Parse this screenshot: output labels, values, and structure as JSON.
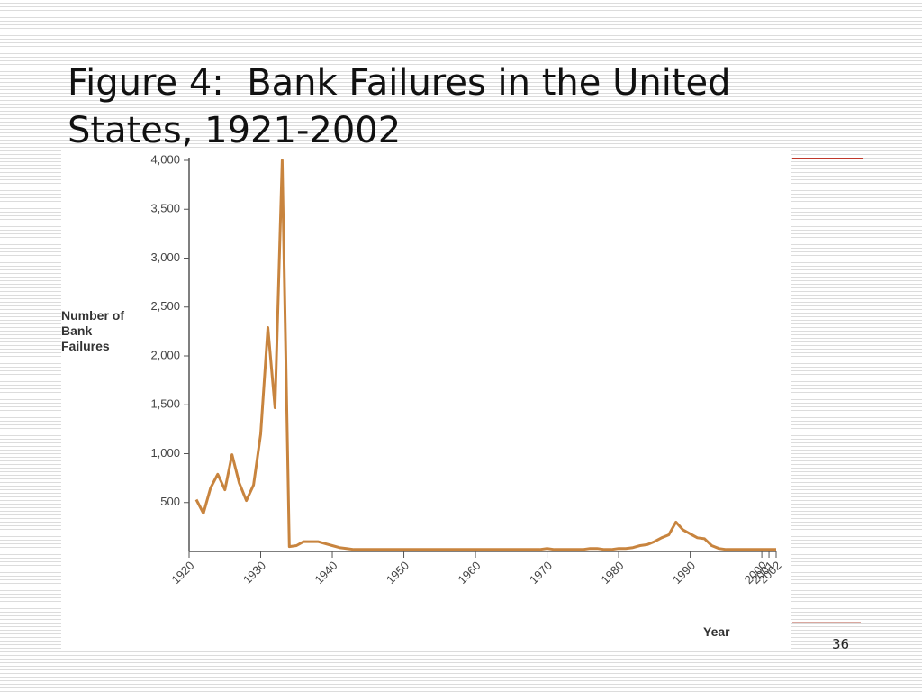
{
  "chart_data": {
    "type": "line",
    "title": "Figure 4:  Bank Failures in the United States, 1921-2002",
    "y_label": "Number of Bank Failures",
    "x_label": "Year",
    "page_number": "36",
    "color": "#c8843e",
    "x": [
      1921,
      1922,
      1923,
      1924,
      1925,
      1926,
      1927,
      1928,
      1929,
      1930,
      1931,
      1932,
      1933,
      1934,
      1935,
      1936,
      1937,
      1938,
      1939,
      1940,
      1941,
      1942,
      1943,
      1944,
      1945,
      1946,
      1947,
      1948,
      1949,
      1950,
      1951,
      1952,
      1953,
      1954,
      1955,
      1956,
      1957,
      1958,
      1959,
      1960,
      1961,
      1962,
      1963,
      1964,
      1965,
      1966,
      1967,
      1968,
      1969,
      1970,
      1971,
      1972,
      1973,
      1974,
      1975,
      1976,
      1977,
      1978,
      1979,
      1980,
      1981,
      1982,
      1983,
      1984,
      1985,
      1986,
      1987,
      1988,
      1989,
      1990,
      1991,
      1992,
      1993,
      1994,
      1995,
      1996,
      1997,
      1998,
      1999,
      2000,
      2001,
      2002
    ],
    "values": [
      530,
      390,
      650,
      790,
      630,
      990,
      700,
      520,
      680,
      1200,
      2290,
      1470,
      4000,
      50,
      60,
      100,
      100,
      100,
      80,
      60,
      40,
      30,
      20,
      20,
      20,
      20,
      20,
      20,
      20,
      20,
      20,
      20,
      20,
      20,
      20,
      20,
      20,
      20,
      20,
      20,
      20,
      20,
      20,
      20,
      20,
      20,
      20,
      20,
      20,
      30,
      20,
      20,
      20,
      20,
      20,
      30,
      30,
      20,
      20,
      30,
      30,
      40,
      60,
      70,
      100,
      140,
      170,
      300,
      220,
      180,
      140,
      130,
      60,
      30,
      20,
      20,
      20,
      20,
      20,
      20,
      20,
      20
    ],
    "xlim": [
      1920,
      2002
    ],
    "xticks": [
      1920,
      1930,
      1940,
      1950,
      1960,
      1970,
      1980,
      1990,
      2000,
      2001,
      2002
    ],
    "ylim": [
      0,
      4000
    ],
    "yticks": [
      500,
      {
        "value": 1000,
        "label": "1,000"
      },
      {
        "value": 1500,
        "label": "1,500"
      },
      {
        "value": 2000,
        "label": "2,000"
      },
      {
        "value": 2500,
        "label": "2,500"
      },
      {
        "value": 3000,
        "label": "3,000"
      },
      {
        "value": 3500,
        "label": "3,500"
      },
      {
        "value": 4000,
        "label": "4,000"
      }
    ]
  }
}
